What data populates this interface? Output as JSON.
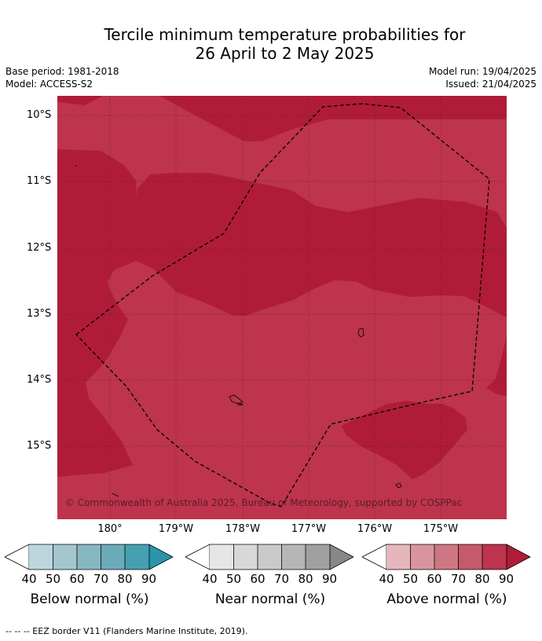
{
  "header": {
    "title_line1": "Tercile minimum temperature probabilities for",
    "title_line2": "26 April to 2 May 2025",
    "base_period": "Base period: 1981-2018",
    "model": "Model: ACCESS-S2",
    "model_run": "Model run: 19/04/2025",
    "issued": "Issued: 21/04/2025"
  },
  "map": {
    "lat_labels": [
      "10°S",
      "11°S",
      "12°S",
      "13°S",
      "14°S",
      "15°S"
    ],
    "lon_labels": [
      "180°",
      "179°W",
      "178°W",
      "177°W",
      "176°W",
      "175°W"
    ],
    "copyright": "© Commonwealth of Australia 2025, Bureau of Meteorology, supported by COSPPac",
    "colors": {
      "above_80": "#bd344c",
      "above_90": "#b01c38",
      "eez_line": "#000000"
    }
  },
  "legend": {
    "ticks": [
      "40",
      "50",
      "60",
      "70",
      "80",
      "90"
    ],
    "below": {
      "label": "Below normal (%)",
      "colors": [
        "#bdd6de",
        "#a4c6cf",
        "#88b7c4",
        "#6aaab9",
        "#45a0b2",
        "#2a94ab"
      ]
    },
    "near": {
      "label": "Near normal (%)",
      "colors": [
        "#e6e6e6",
        "#d8d8d8",
        "#cacaca",
        "#b6b6b6",
        "#a0a0a0",
        "#888888"
      ]
    },
    "above": {
      "label": "Above normal (%)",
      "colors": [
        "#e5b7bd",
        "#d8959f",
        "#ce7681",
        "#c55a6a",
        "#bd344c",
        "#b01c38"
      ]
    }
  },
  "footer": {
    "eez_note": "--  --  -- EEZ border V11 (Flanders Marine Institute, 2019)."
  }
}
